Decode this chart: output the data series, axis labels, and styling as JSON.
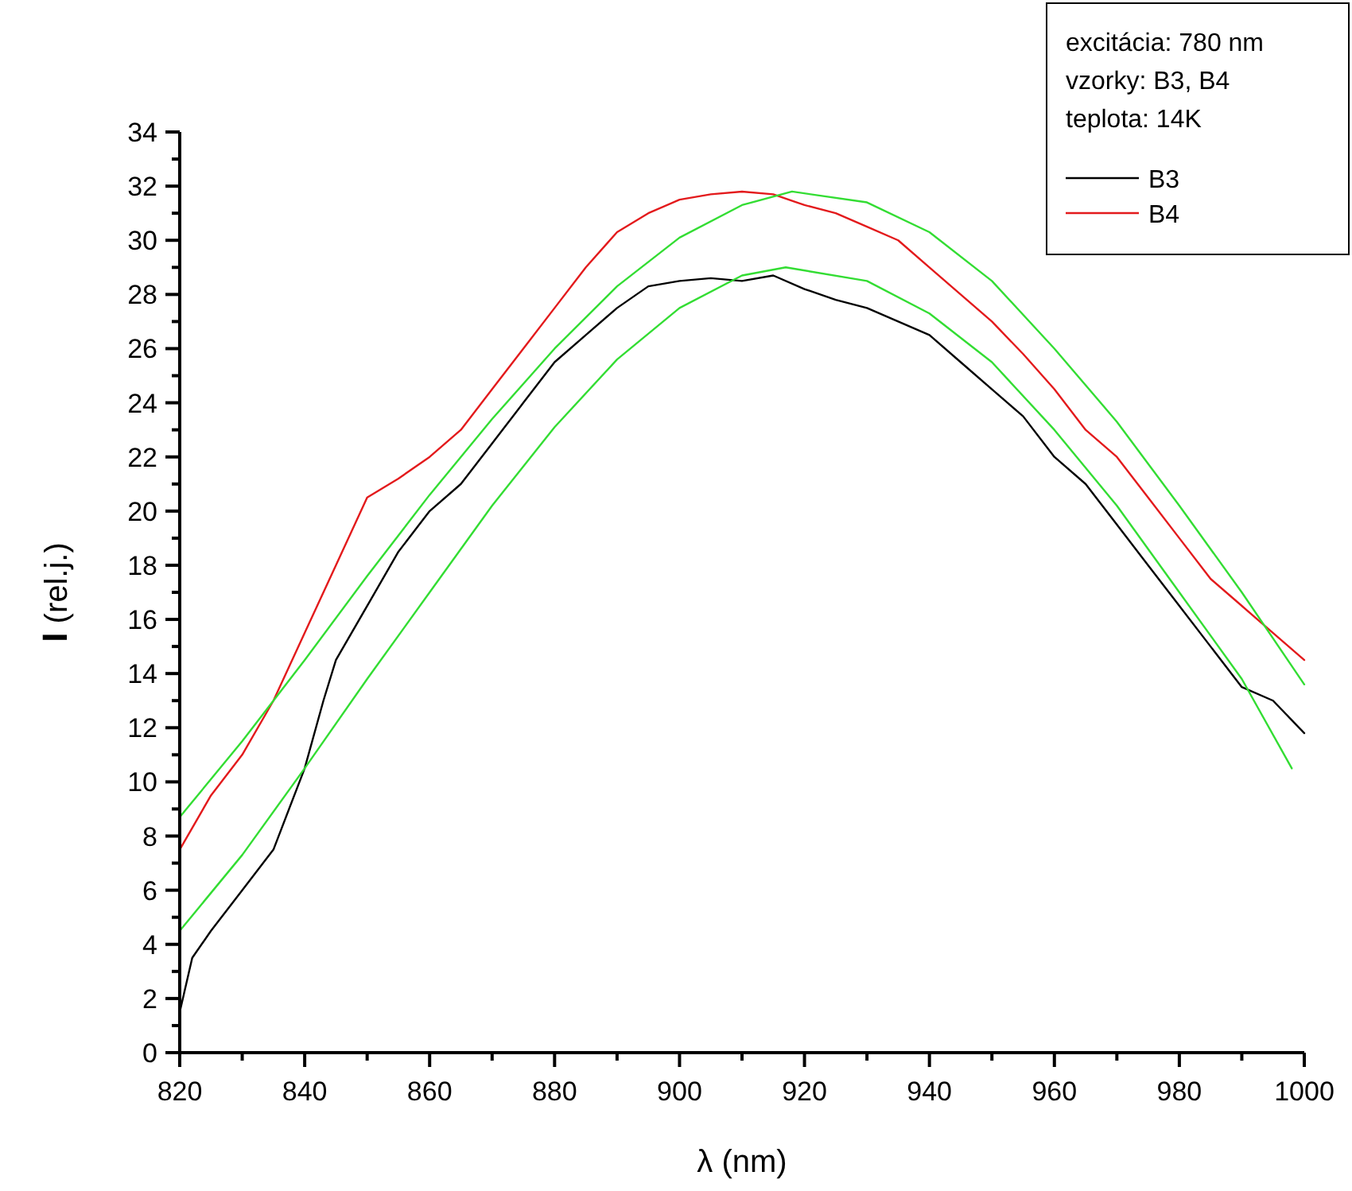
{
  "chart_data": {
    "type": "line",
    "xlabel": "λ (nm)",
    "ylabel": "I (rel.j.)",
    "annotations": [
      "excitácia: 780 nm",
      "vzorky: B3, B4",
      "teplota: 14K"
    ],
    "xlim": [
      820,
      1000
    ],
    "ylim": [
      0,
      34
    ],
    "xticks": [
      820,
      {
        "value": 830,
        "label": null
      },
      840,
      {
        "value": 850,
        "label": null
      },
      860,
      {
        "value": 870,
        "label": null
      },
      880,
      {
        "value": 890,
        "label": null
      },
      900,
      {
        "value": 910,
        "label": null
      },
      920,
      {
        "value": 930,
        "label": null
      },
      940,
      {
        "value": 950,
        "label": null
      },
      960,
      {
        "value": 970,
        "label": null
      },
      980,
      {
        "value": 990,
        "label": null
      },
      1000
    ],
    "yticks": [
      0,
      {
        "value": 1,
        "label": null
      },
      2,
      {
        "value": 3,
        "label": null
      },
      4,
      {
        "value": 5,
        "label": null
      },
      6,
      {
        "value": 7,
        "label": null
      },
      8,
      {
        "value": 9,
        "label": null
      },
      10,
      {
        "value": 11,
        "label": null
      },
      12,
      {
        "value": 13,
        "label": null
      },
      14,
      {
        "value": 15,
        "label": null
      },
      16,
      {
        "value": 17,
        "label": null
      },
      18,
      {
        "value": 19,
        "label": null
      },
      20,
      {
        "value": 21,
        "label": null
      },
      22,
      {
        "value": 23,
        "label": null
      },
      24,
      {
        "value": 25,
        "label": null
      },
      26,
      {
        "value": 27,
        "label": null
      },
      28,
      {
        "value": 29,
        "label": null
      },
      30,
      {
        "value": 31,
        "label": null
      },
      32,
      {
        "value": 33,
        "label": null
      },
      34
    ],
    "grid": false,
    "legend": "top right",
    "marker": "none",
    "line_style": "solid",
    "series": [
      {
        "name": "B3",
        "color": "#000000",
        "x": [
          820,
          822,
          825,
          830,
          835,
          840,
          843,
          845,
          850,
          855,
          860,
          865,
          870,
          875,
          880,
          885,
          890,
          895,
          900,
          905,
          910,
          915,
          920,
          925,
          930,
          935,
          940,
          945,
          950,
          955,
          960,
          965,
          970,
          975,
          980,
          985,
          990,
          995,
          1000
        ],
        "values": [
          1.5,
          3.5,
          4.5,
          6,
          7.5,
          10.5,
          13,
          14.5,
          16.5,
          18.5,
          20,
          21,
          22.5,
          24,
          25.5,
          26.5,
          27.5,
          28.3,
          28.5,
          28.6,
          28.5,
          28.7,
          28.2,
          27.8,
          27.5,
          27,
          26.5,
          25.5,
          24.5,
          23.5,
          22,
          21,
          19.5,
          18,
          16.5,
          15,
          13.5,
          13,
          11.8
        ]
      },
      {
        "name": "B4",
        "color": "#e31a1c",
        "x": [
          820,
          825,
          830,
          835,
          840,
          845,
          850,
          855,
          860,
          865,
          870,
          875,
          880,
          885,
          890,
          895,
          900,
          905,
          910,
          915,
          920,
          925,
          930,
          935,
          940,
          945,
          950,
          955,
          960,
          965,
          970,
          975,
          980,
          985,
          990,
          995,
          1000
        ],
        "values": [
          7.5,
          9.5,
          11,
          13,
          15.5,
          18,
          20.5,
          21.2,
          22,
          23,
          24.5,
          26,
          27.5,
          29,
          30.3,
          31,
          31.5,
          31.7,
          31.8,
          31.7,
          31.3,
          31,
          30.5,
          30,
          29,
          28,
          27,
          25.8,
          24.5,
          23,
          22,
          20.5,
          19,
          17.5,
          16.5,
          15.5,
          14.5
        ]
      },
      {
        "color": "#33dd33",
        "x": [
          820,
          830,
          840,
          850,
          860,
          870,
          880,
          890,
          900,
          910,
          918,
          930,
          940,
          950,
          960,
          970,
          980,
          990,
          1000
        ],
        "values": [
          8.7,
          11.5,
          14.5,
          17.6,
          20.6,
          23.4,
          26,
          28.3,
          30.1,
          31.3,
          31.8,
          31.4,
          30.3,
          28.5,
          26,
          23.3,
          20.2,
          17,
          13.6
        ]
      },
      {
        "color": "#33dd33",
        "x": [
          820,
          830,
          840,
          850,
          860,
          870,
          880,
          890,
          900,
          910,
          917,
          930,
          940,
          950,
          960,
          970,
          980,
          990,
          998
        ],
        "values": [
          4.5,
          7.3,
          10.5,
          13.8,
          17,
          20.2,
          23.1,
          25.6,
          27.5,
          28.7,
          29,
          28.5,
          27.3,
          25.5,
          23,
          20.2,
          17,
          13.8,
          10.5
        ]
      }
    ]
  }
}
